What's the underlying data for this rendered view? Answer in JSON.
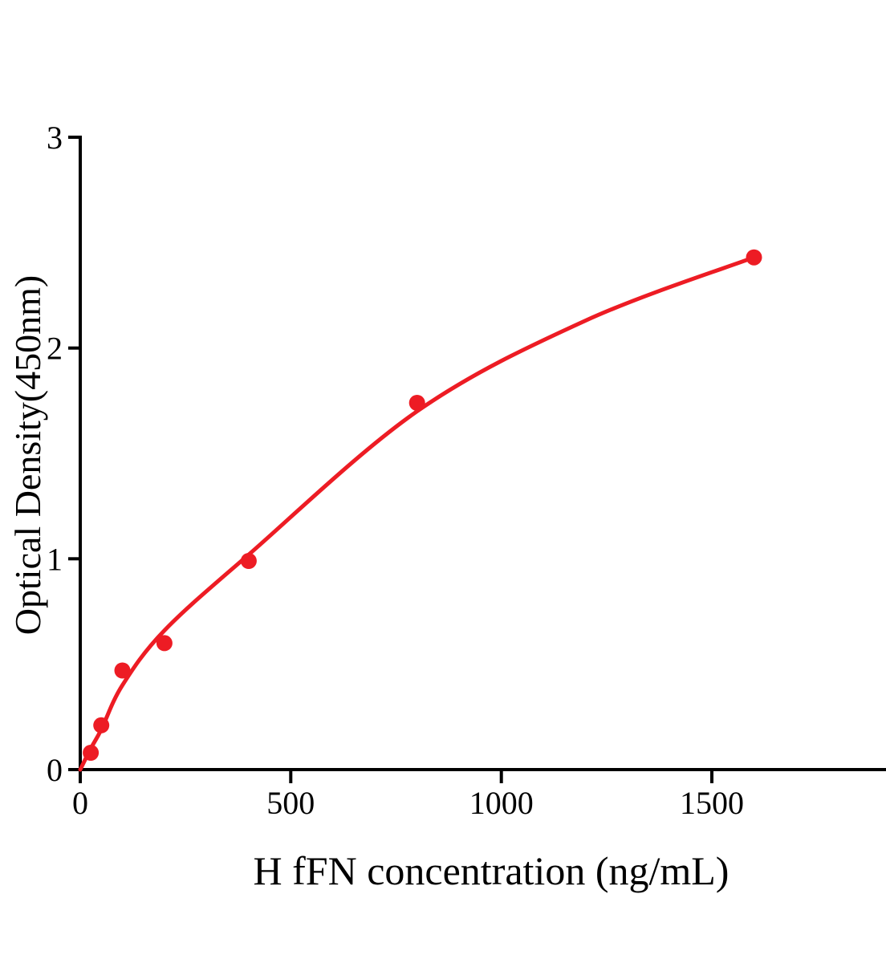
{
  "figure": {
    "background_color": "#ffffff",
    "axis_color": "#000000",
    "accent_color": "#ed1c24"
  },
  "chart_data": {
    "type": "scatter",
    "title": "",
    "xlabel": "H fFN concentration (ng/mL)",
    "ylabel": "Optical Density(450nm)",
    "xlim": [
      0,
      1915
    ],
    "ylim": [
      0,
      3
    ],
    "x_ticks": [
      0,
      500,
      1000,
      1500
    ],
    "y_ticks": [
      0,
      1,
      2,
      3
    ],
    "grid": false,
    "legend": "none",
    "series": [
      {
        "name": "standard-points",
        "type": "scatter",
        "color": "#ed1c24",
        "x": [
          25,
          50,
          100,
          200,
          400,
          800,
          1600
        ],
        "y": [
          0.08,
          0.21,
          0.47,
          0.6,
          0.99,
          1.74,
          2.43
        ]
      },
      {
        "name": "fitted-curve",
        "type": "line",
        "color": "#ed1c24",
        "points": [
          [
            0,
            0
          ],
          [
            25,
            0.1
          ],
          [
            50,
            0.19
          ],
          [
            100,
            0.4
          ],
          [
            200,
            0.66
          ],
          [
            400,
            1.02
          ],
          [
            800,
            1.7
          ],
          [
            1200,
            2.13
          ],
          [
            1600,
            2.43
          ]
        ]
      }
    ]
  }
}
